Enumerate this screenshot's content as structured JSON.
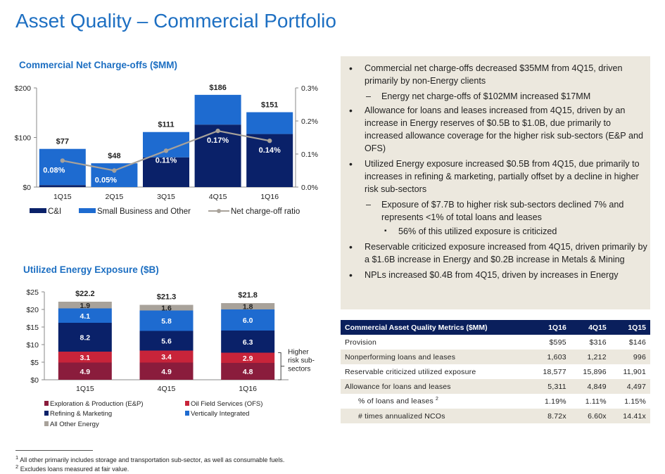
{
  "page": {
    "title": "Asset Quality – Commercial Portfolio"
  },
  "chart_data": [
    {
      "type": "bar",
      "stacked": true,
      "title": "Commercial Net Charge-offs ($MM)",
      "categories": [
        "1Q15",
        "2Q15",
        "3Q15",
        "4Q15",
        "1Q16"
      ],
      "series": [
        {
          "name": "C&I",
          "color": "#0a2169",
          "values": [
            4,
            0,
            60,
            126,
            107
          ]
        },
        {
          "name": "Small Business and Other",
          "color": "#1e6bd0",
          "values": [
            73,
            48,
            51,
            60,
            44
          ]
        }
      ],
      "line_series": {
        "name": "Net charge-off ratio",
        "color": "#a8a29a",
        "values": [
          0.08,
          0.05,
          0.11,
          0.17,
          0.14
        ],
        "labels": [
          "0.08%",
          "0.05%",
          "0.11%",
          "0.17%",
          "0.14%"
        ]
      },
      "total_labels": [
        "$77",
        "$48",
        "$111",
        "$186",
        "$151"
      ],
      "ylim": [
        0,
        200
      ],
      "y_ticks": [
        "$0",
        "$100",
        "$200"
      ],
      "y2lim": [
        0,
        0.3
      ],
      "y2_ticks": [
        "0.0%",
        "0.1%",
        "0.2%",
        "0.3%"
      ],
      "legend": [
        "C&I",
        "Small Business and Other",
        "Net charge-off ratio"
      ]
    },
    {
      "type": "bar",
      "stacked": true,
      "title": "Utilized Energy Exposure ($B)",
      "categories": [
        "1Q15",
        "4Q15",
        "1Q16"
      ],
      "series": [
        {
          "name": "Exploration & Production (E&P)",
          "color": "#8a1c3c",
          "values": [
            4.9,
            4.9,
            4.8
          ],
          "labels": [
            "4.9",
            "4.9",
            "4.8"
          ]
        },
        {
          "name": "Oil Field Services (OFS)",
          "color": "#c8243a",
          "values": [
            3.1,
            3.4,
            2.9
          ],
          "labels": [
            "3.1",
            "3.4",
            "2.9"
          ]
        },
        {
          "name": "Refining & Marketing",
          "color": "#0a2169",
          "values": [
            8.2,
            5.6,
            6.3
          ],
          "labels": [
            "8.2",
            "5.6",
            "6.3"
          ]
        },
        {
          "name": "Vertically Integrated",
          "color": "#1e6bd0",
          "values": [
            4.1,
            5.8,
            6.0
          ],
          "labels": [
            "4.1",
            "5.8",
            "6.0"
          ]
        },
        {
          "name": "All Other Energy",
          "color": "#a8a29a",
          "values": [
            1.9,
            1.6,
            1.8
          ],
          "labels": [
            "1.9",
            "1.6",
            "1.8"
          ]
        }
      ],
      "total_labels": [
        "$22.2",
        "$21.3",
        "$21.8"
      ],
      "ylim": [
        0,
        25
      ],
      "y_ticks": [
        "$0",
        "$5",
        "$10",
        "$15",
        "$20",
        "$25"
      ],
      "annotation": [
        "Higher",
        "risk sub-",
        "sectors"
      ]
    }
  ],
  "bullets": [
    {
      "level": 1,
      "text": "Commercial net charge-offs decreased $35MM from 4Q15, driven primarily by non-Energy clients"
    },
    {
      "level": 2,
      "text": "Energy net charge-offs of $102MM increased $17MM"
    },
    {
      "level": 1,
      "text": "Allowance for loans and leases increased from 4Q15, driven by an increase in Energy reserves of $0.5B to $1.0B, due primarily to increased allowance coverage for the higher risk sub-sectors (E&P and OFS)"
    },
    {
      "level": 1,
      "text": "Utilized Energy exposure increased $0.5B from 4Q15, due primarily to increases in refining & marketing, partially offset by a decline in higher risk sub-sectors"
    },
    {
      "level": 2,
      "text": "Exposure of $7.7B to higher risk sub-sectors declined 7% and represents <1% of total loans and leases"
    },
    {
      "level": 3,
      "text": "56% of this utilized exposure is criticized"
    },
    {
      "level": 1,
      "text": "Reservable criticized exposure increased from 4Q15, driven primarily by a $1.6B increase in Energy and $0.2B increase in Metals & Mining"
    },
    {
      "level": 1,
      "text": "NPLs increased $0.4B from 4Q15, driven by increases in Energy"
    }
  ],
  "bullet_markers": {
    "1": "•",
    "2": "–",
    "3": "▪"
  },
  "metrics_table": {
    "headers": [
      "Commercial Asset Quality Metrics ($MM)",
      "1Q16",
      "4Q15",
      "1Q15"
    ],
    "rows": [
      {
        "label": "Provision",
        "values": [
          "$595",
          "$316",
          "$146"
        ]
      },
      {
        "label": "Nonperforming loans and leases",
        "values": [
          "1,603",
          "1,212",
          "996"
        ]
      },
      {
        "label": "Reservable criticized utilized exposure",
        "values": [
          "18,577",
          "15,896",
          "11,901"
        ]
      },
      {
        "label": "Allowance for loans and leases",
        "values": [
          "5,311",
          "4,849",
          "4,497"
        ]
      },
      {
        "label": "% of loans and leases",
        "sup": "2",
        "values": [
          "1.19%",
          "1.11%",
          "1.15%"
        ]
      },
      {
        "label": "# times annualized NCOs",
        "values": [
          "8.72x",
          "6.60x",
          "14.41x"
        ]
      }
    ]
  },
  "footnotes": {
    "fn1_mark": "1",
    "fn1": "All other primarily includes storage and transportation sub-sector, as well as consumable fuels.",
    "fn2_mark": "2",
    "fn2": "Excludes loans measured at fair value."
  }
}
